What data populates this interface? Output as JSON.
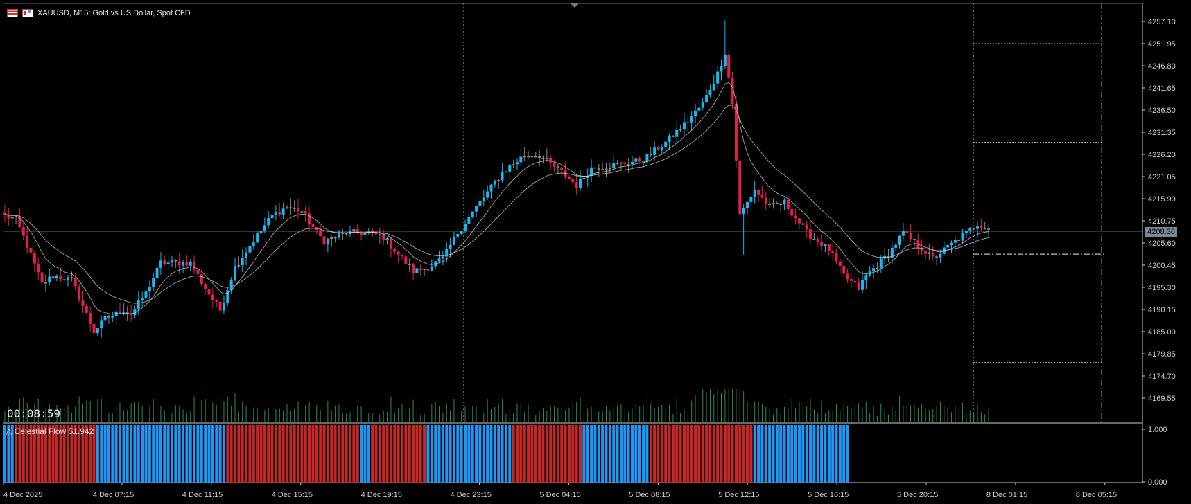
{
  "header": {
    "symbol_line": "XAUUSD, M15:  Gold vs US Dollar, Spot CFD"
  },
  "timer": "00:08:59",
  "indicator": {
    "label": "Celestial Flow 51.942",
    "glyph": "△",
    "ticks": [
      "1.000",
      "0.000"
    ],
    "up_color": "#2196f3",
    "down_color": "#c62828",
    "blocks": [
      {
        "color": "up",
        "count": 3
      },
      {
        "color": "down",
        "count": 22
      },
      {
        "color": "up",
        "count": 35
      },
      {
        "color": "down",
        "count": 36
      },
      {
        "color": "up",
        "count": 3
      },
      {
        "color": "down",
        "count": 15
      },
      {
        "color": "up",
        "count": 23
      },
      {
        "color": "down",
        "count": 19
      },
      {
        "color": "up",
        "count": 18
      },
      {
        "color": "down",
        "count": 28
      },
      {
        "color": "up",
        "count": 26
      }
    ]
  },
  "price_axis": {
    "ticks": [
      "4257.10",
      "4251.95",
      "4246.80",
      "4241.65",
      "4236.50",
      "4231.35",
      "4226.20",
      "4221.05",
      "4215.90",
      "4210.75",
      "4205.60",
      "4200.45",
      "4195.30",
      "4190.15",
      "4185.00",
      "4179.85",
      "4174.70",
      "4169.55"
    ],
    "current_price": "4208.36"
  },
  "time_axis": {
    "labels": [
      "4 Dec 2025",
      "4 Dec 07:15",
      "4 Dec 11:15",
      "4 Dec 15:15",
      "4 Dec 19:15",
      "4 Dec 23:15",
      "5 Dec 04:15",
      "5 Dec 08:15",
      "5 Dec 12:15",
      "5 Dec 16:15",
      "5 Dec 20:15",
      "8 Dec 01:15",
      "8 Dec 05:15"
    ]
  },
  "levels": [
    {
      "price": 4251.95,
      "style": "dotted",
      "color": "#d98a2b"
    },
    {
      "price": 4229.0,
      "style": "dotted",
      "color": "#d9b82b"
    },
    {
      "price": 4203.0,
      "style": "dashdot",
      "color": "#bbbbbb"
    },
    {
      "price": 4177.8,
      "style": "dotted",
      "color": "#bbbbbb"
    }
  ],
  "colors": {
    "background": "#000000",
    "bull_candle": "#1ab8f0",
    "bear_candle": "#e0204a",
    "neutral_candle": "#8a8a8a",
    "ma_line": "#d0d0d0",
    "volume": "#2e8b57",
    "grid_separator": "#cfcfcf",
    "current_price_line": "#7a8795"
  },
  "chart_data": {
    "type": "candlestick",
    "symbol": "XAUUSD",
    "timeframe": "M15",
    "ylim": [
      4165,
      4262
    ],
    "y_ticks": [
      4257.1,
      4251.95,
      4246.8,
      4241.65,
      4236.5,
      4231.35,
      4226.2,
      4221.05,
      4215.9,
      4210.75,
      4205.6,
      4200.45,
      4195.3,
      4190.15,
      4185.0,
      4179.85,
      4174.7,
      4169.55
    ],
    "x_labels": [
      "4 Dec 2025",
      "4 Dec 07:15",
      "4 Dec 11:15",
      "4 Dec 15:15",
      "4 Dec 19:15",
      "4 Dec 23:15",
      "5 Dec 04:15",
      "5 Dec 08:15",
      "5 Dec 12:15",
      "5 Dec 16:15",
      "5 Dec 20:15",
      "8 Dec 01:15",
      "8 Dec 05:15"
    ],
    "close_path": [
      {
        "i": 0,
        "p": 4212
      },
      {
        "i": 3,
        "p": 4211
      },
      {
        "i": 6,
        "p": 4205
      },
      {
        "i": 10,
        "p": 4196
      },
      {
        "i": 13,
        "p": 4198
      },
      {
        "i": 18,
        "p": 4197
      },
      {
        "i": 20,
        "p": 4193
      },
      {
        "i": 24,
        "p": 4185
      },
      {
        "i": 27,
        "p": 4188
      },
      {
        "i": 32,
        "p": 4190
      },
      {
        "i": 34,
        "p": 4189
      },
      {
        "i": 38,
        "p": 4194
      },
      {
        "i": 42,
        "p": 4201
      },
      {
        "i": 50,
        "p": 4201
      },
      {
        "i": 54,
        "p": 4195
      },
      {
        "i": 58,
        "p": 4190
      },
      {
        "i": 62,
        "p": 4200
      },
      {
        "i": 66,
        "p": 4205
      },
      {
        "i": 72,
        "p": 4212
      },
      {
        "i": 76,
        "p": 4214
      },
      {
        "i": 80,
        "p": 4213
      },
      {
        "i": 84,
        "p": 4208
      },
      {
        "i": 86,
        "p": 4206
      },
      {
        "i": 92,
        "p": 4208
      },
      {
        "i": 98,
        "p": 4208
      },
      {
        "i": 102,
        "p": 4207
      },
      {
        "i": 106,
        "p": 4203
      },
      {
        "i": 110,
        "p": 4199
      },
      {
        "i": 114,
        "p": 4200
      },
      {
        "i": 118,
        "p": 4202
      },
      {
        "i": 122,
        "p": 4208
      },
      {
        "i": 128,
        "p": 4215
      },
      {
        "i": 134,
        "p": 4222
      },
      {
        "i": 140,
        "p": 4226
      },
      {
        "i": 144,
        "p": 4226
      },
      {
        "i": 150,
        "p": 4222
      },
      {
        "i": 154,
        "p": 4219
      },
      {
        "i": 158,
        "p": 4223
      },
      {
        "i": 166,
        "p": 4224
      },
      {
        "i": 172,
        "p": 4225
      },
      {
        "i": 178,
        "p": 4229
      },
      {
        "i": 184,
        "p": 4234
      },
      {
        "i": 188,
        "p": 4238
      },
      {
        "i": 192,
        "p": 4245
      },
      {
        "i": 194,
        "p": 4250
      },
      {
        "i": 196,
        "p": 4238
      },
      {
        "i": 198,
        "p": 4212
      },
      {
        "i": 202,
        "p": 4218
      },
      {
        "i": 206,
        "p": 4214
      },
      {
        "i": 210,
        "p": 4215
      },
      {
        "i": 216,
        "p": 4208
      },
      {
        "i": 222,
        "p": 4204
      },
      {
        "i": 226,
        "p": 4198
      },
      {
        "i": 230,
        "p": 4195
      },
      {
        "i": 232,
        "p": 4198
      },
      {
        "i": 238,
        "p": 4203
      },
      {
        "i": 242,
        "p": 4208
      },
      {
        "i": 246,
        "p": 4205
      },
      {
        "i": 250,
        "p": 4202
      },
      {
        "i": 256,
        "p": 4206
      },
      {
        "i": 262,
        "p": 4210
      },
      {
        "i": 265,
        "p": 4209
      }
    ]
  }
}
